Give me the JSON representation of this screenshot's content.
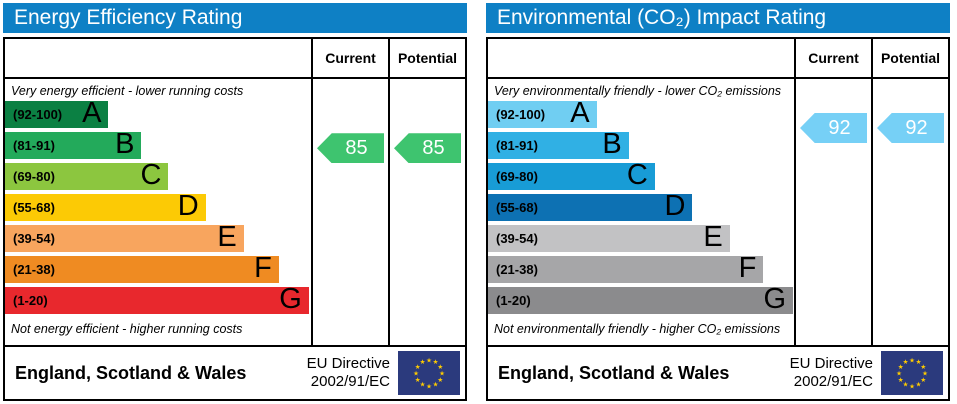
{
  "panels": [
    {
      "title": "Energy Efficiency Rating",
      "title_bg": "#0e80c5",
      "columns": {
        "current": "Current",
        "potential": "Potential"
      },
      "top_caption": "Very energy efficient - lower running costs",
      "bottom_caption": "Not energy efficient - higher running costs",
      "bands": [
        {
          "letter": "A",
          "range_label": "(92-100)",
          "min": 92,
          "max": 100,
          "color": "#0b8043",
          "width_pct": "33.8%"
        },
        {
          "letter": "B",
          "range_label": "(81-91)",
          "min": 81,
          "max": 91,
          "color": "#23aa5b",
          "width_pct": "44.6%"
        },
        {
          "letter": "C",
          "range_label": "(69-80)",
          "min": 69,
          "max": 80,
          "color": "#8cc63f",
          "width_pct": "53.4%"
        },
        {
          "letter": "D",
          "range_label": "(55-68)",
          "min": 55,
          "max": 68,
          "color": "#fcca05",
          "width_pct": "65.6%"
        },
        {
          "letter": "E",
          "range_label": "(39-54)",
          "min": 39,
          "max": 54,
          "color": "#f8a55e",
          "width_pct": "78%"
        },
        {
          "letter": "F",
          "range_label": "(21-38)",
          "min": 21,
          "max": 38,
          "color": "#ef8b22",
          "width_pct": "89.5%"
        },
        {
          "letter": "G",
          "range_label": "(1-20)",
          "min": 1,
          "max": 20,
          "color": "#e8282d",
          "width_pct": "99.3%"
        }
      ],
      "ratings": {
        "current": 85,
        "potential": 85,
        "arrow_color": "#3ec46f",
        "text_color": "#ffffff"
      },
      "footer": {
        "region": "England, Scotland & Wales",
        "directive_line1": "EU Directive",
        "directive_line2": "2002/91/EC",
        "flag_bg": "#2b3a7d",
        "flag_star_color": "#ffcc00"
      }
    },
    {
      "title": "Environmental (CO₂) Impact Rating",
      "title_bg": "#0e80c5",
      "columns": {
        "current": "Current",
        "potential": "Potential"
      },
      "top_caption": "Very environmentally friendly - lower CO₂ emissions",
      "bottom_caption": "Not environmentally friendly - higher CO₂ emissions",
      "bands": [
        {
          "letter": "A",
          "range_label": "(92-100)",
          "min": 92,
          "max": 100,
          "color": "#70cef2",
          "width_pct": "35.5%"
        },
        {
          "letter": "B",
          "range_label": "(81-91)",
          "min": 81,
          "max": 91,
          "color": "#30b0e4",
          "width_pct": "46%"
        },
        {
          "letter": "C",
          "range_label": "(69-80)",
          "min": 69,
          "max": 80,
          "color": "#189cd6",
          "width_pct": "54.5%"
        },
        {
          "letter": "D",
          "range_label": "(55-68)",
          "min": 55,
          "max": 68,
          "color": "#0d71b3",
          "width_pct": "66.8%"
        },
        {
          "letter": "E",
          "range_label": "(39-54)",
          "min": 39,
          "max": 54,
          "color": "#c2c2c4",
          "width_pct": "79%"
        },
        {
          "letter": "F",
          "range_label": "(21-38)",
          "min": 21,
          "max": 38,
          "color": "#a6a6a8",
          "width_pct": "90%"
        },
        {
          "letter": "G",
          "range_label": "(1-20)",
          "min": 1,
          "max": 20,
          "color": "#8b8b8d",
          "width_pct": "99.7%"
        }
      ],
      "ratings": {
        "current": 92,
        "potential": 92,
        "arrow_color": "#76d0f6",
        "text_color": "#ffffff"
      },
      "footer": {
        "region": "England, Scotland & Wales",
        "directive_line1": "EU Directive",
        "directive_line2": "2002/91/EC",
        "flag_bg": "#2b3a7d",
        "flag_star_color": "#ffcc00"
      }
    }
  ],
  "chart_data": [
    {
      "type": "bar",
      "title": "Energy Efficiency Rating",
      "categories": [
        "A (92-100)",
        "B (81-91)",
        "C (69-80)",
        "D (55-68)",
        "E (39-54)",
        "F (21-38)",
        "G (1-20)"
      ],
      "series": [
        {
          "name": "band_bar_length_pct",
          "values": [
            33.8,
            44.6,
            53.4,
            65.6,
            78,
            89.5,
            99.3
          ]
        }
      ],
      "band_colors": [
        "#0b8043",
        "#23aa5b",
        "#8cc63f",
        "#fcca05",
        "#f8a55e",
        "#ef8b22",
        "#e8282d"
      ],
      "current_rating": 85,
      "potential_rating": 85,
      "current_band": "B",
      "potential_band": "B",
      "annotations": [
        "Very energy efficient - lower running costs",
        "Not energy efficient - higher running costs"
      ],
      "legend_position": "none",
      "grid": false
    },
    {
      "type": "bar",
      "title": "Environmental (CO₂) Impact Rating",
      "categories": [
        "A (92-100)",
        "B (81-91)",
        "C (69-80)",
        "D (55-68)",
        "E (39-54)",
        "F (21-38)",
        "G (1-20)"
      ],
      "series": [
        {
          "name": "band_bar_length_pct",
          "values": [
            35.5,
            46,
            54.5,
            66.8,
            79,
            90,
            99.7
          ]
        }
      ],
      "band_colors": [
        "#70cef2",
        "#30b0e4",
        "#189cd6",
        "#0d71b3",
        "#c2c2c4",
        "#a6a6a8",
        "#8b8b8d"
      ],
      "current_rating": 92,
      "potential_rating": 92,
      "current_band": "A",
      "potential_band": "A",
      "annotations": [
        "Very environmentally friendly - lower CO₂ emissions",
        "Not environmentally friendly - higher CO₂ emissions"
      ],
      "legend_position": "none",
      "grid": false
    }
  ]
}
